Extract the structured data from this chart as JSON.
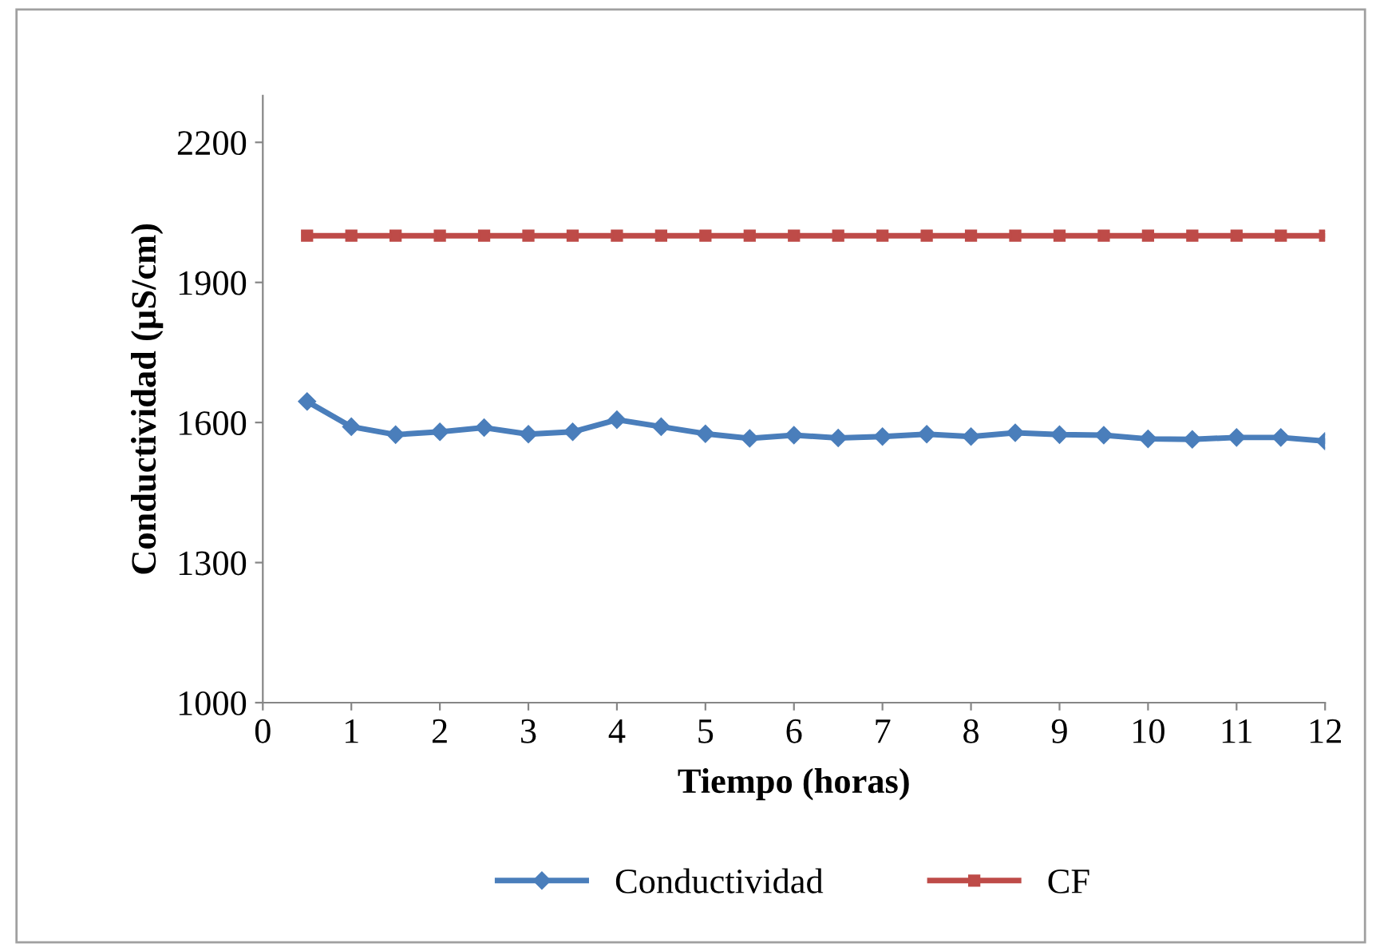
{
  "chart_data": {
    "type": "line",
    "xlabel": "Tiempo (horas)",
    "ylabel": "Conductividad (µS/cm)",
    "x": [
      0.5,
      1,
      1.5,
      2,
      2.5,
      3,
      3.5,
      4,
      4.5,
      5,
      5.5,
      6,
      6.5,
      7,
      7.5,
      8,
      8.5,
      9,
      9.5,
      10,
      10.5,
      11,
      11.5,
      12
    ],
    "series": [
      {
        "name": "Conductividad",
        "color": "#4a7ebb",
        "marker": "diamond",
        "values": [
          1645,
          1591,
          1574,
          1580,
          1589,
          1575,
          1580,
          1606,
          1591,
          1576,
          1566,
          1573,
          1567,
          1570,
          1575,
          1570,
          1578,
          1574,
          1573,
          1565,
          1564,
          1568,
          1568,
          1560
        ]
      },
      {
        "name": "CF",
        "color": "#be4b48",
        "marker": "square",
        "values": [
          2000,
          2000,
          2000,
          2000,
          2000,
          2000,
          2000,
          2000,
          2000,
          2000,
          2000,
          2000,
          2000,
          2000,
          2000,
          2000,
          2000,
          2000,
          2000,
          2000,
          2000,
          2000,
          2000,
          2000
        ]
      }
    ],
    "xlim": [
      0,
      12
    ],
    "xticks": [
      0,
      1,
      2,
      3,
      4,
      5,
      6,
      7,
      8,
      9,
      10,
      11,
      12
    ],
    "ylim": [
      1000,
      2300
    ],
    "yticks": [
      1000,
      1300,
      1600,
      1900,
      2200
    ],
    "grid": false,
    "legend": "bottom"
  }
}
